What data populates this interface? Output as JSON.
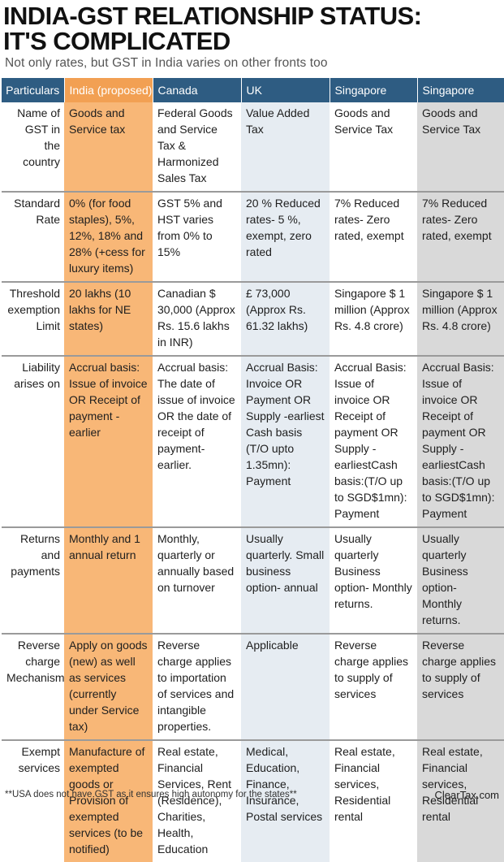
{
  "title_line1": "INDIA-GST RELATIONSHIP STATUS:",
  "title_line2": "IT'S COMPLICATED",
  "subtitle": "Not only rates, but GST in India varies on other fronts too",
  "columns": [
    "Particulars",
    "India (proposed)",
    "Canada",
    "UK",
    "Singapore",
    "Singapore"
  ],
  "rows": [
    {
      "label": "Name of GST in the country",
      "cells": [
        "Goods and Service tax",
        "Federal Goods and Service Tax & Harmonized Sales Tax",
        "Value Added Tax",
        "Goods and Service Tax",
        "Goods and Service Tax"
      ]
    },
    {
      "label": "Standard Rate",
      "cells": [
        "0% (for food staples), 5%, 12%, 18% and 28% (+cess for luxury items)",
        "GST 5% and HST varies from 0% to 15%",
        "20 % Reduced rates- 5 %, exempt, zero rated",
        "7% Reduced rates- Zero rated, exempt",
        "7% Reduced rates- Zero rated, exempt"
      ]
    },
    {
      "label": "Threshold exemption Limit",
      "cells": [
        "20 lakhs (10 lakhs for NE states)",
        "Canadian $ 30,000 (Approx Rs. 15.6 lakhs in INR)",
        "£ 73,000 (Approx Rs. 61.32 lakhs)",
        "Singapore $ 1 million (Approx Rs. 4.8 crore)",
        "Singapore $ 1 million (Approx Rs. 4.8 crore)"
      ]
    },
    {
      "label": "Liability arises on",
      "cells": [
        "Accrual basis: Issue of invoice OR Receipt of payment -earlier",
        "Accrual basis: The date of issue of invoice OR the date of receipt of payment- earlier.",
        "Accrual Basis: Invoice OR Payment OR Supply -earliest Cash basis (T/O upto 1.35mn): Payment",
        "Accrual Basis: Issue of invoice OR Receipt of payment OR Supply - earliestCash basis:(T/O up to SGD$1mn): Payment",
        "Accrual Basis: Issue of invoice OR Receipt of payment OR Supply - earliestCash basis:(T/O up to SGD$1mn): Payment"
      ]
    },
    {
      "label": "Returns and payments",
      "cells": [
        "Monthly and 1 annual return",
        "Monthly, quarterly or annually based on turnover",
        "Usually quarterly. Small business option- annual",
        "Usually quarterly Business option- Monthly returns.",
        "Usually quarterly Business option- Monthly returns."
      ]
    },
    {
      "label": "Reverse charge Mechanism",
      "cells": [
        "Apply on goods (new) as well as services (currently under Service tax)",
        "Reverse charge applies to importation of services and intangible properties.",
        "Applicable",
        "Reverse charge applies to supply of services",
        "Reverse charge applies to supply of services"
      ]
    },
    {
      "label": "Exempt services",
      "cells": [
        "Manufacture of exempted goods or Provision of exempted services (to be notified)",
        "Real estate, Financial Services, Rent (Residence), Charities, Health, Education",
        "Medical, Education, Finance, Insurance, Postal services",
        "Real estate, Financial services, Residential rental",
        "Real estate, Financial services, Residential rental"
      ]
    }
  ],
  "footnote": "**USA does not have GST as it ensures high autonomy for the states**",
  "brand": "ClearTax.com",
  "colors": {
    "header_bg": "#2e5c82",
    "india_col": "#f8b777",
    "uk_col": "#e6ecf2",
    "singapore2_col": "#d9d9d9"
  }
}
